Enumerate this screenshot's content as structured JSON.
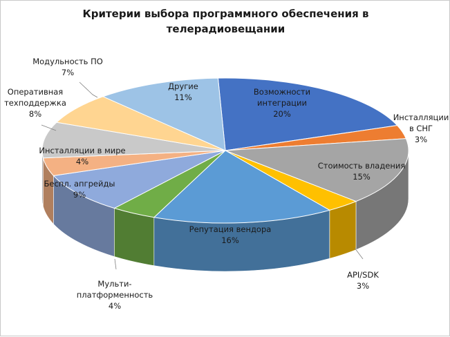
{
  "chart_data": {
    "type": "pie",
    "variant": "3d",
    "title_lines": [
      "Критерии выбора программного обеспечения в",
      "телерадиовещании"
    ],
    "slices": [
      {
        "label": [
          "Возможности",
          "интеграции"
        ],
        "value": 20,
        "value_label": "20%",
        "color": "#4472c4"
      },
      {
        "label": [
          "Инсталляции",
          "в СНГ"
        ],
        "value": 3,
        "value_label": "3%",
        "color": "#ed7d31"
      },
      {
        "label": [
          "Стоимость владения"
        ],
        "value": 15,
        "value_label": "15%",
        "color": "#a5a5a5"
      },
      {
        "label": [
          "API/SDK"
        ],
        "value": 3,
        "value_label": "3%",
        "color": "#ffc000"
      },
      {
        "label": [
          "Репутация вендора"
        ],
        "value": 16,
        "value_label": "16%",
        "color": "#5b9bd5"
      },
      {
        "label": [
          "Мульти-",
          "платформенность"
        ],
        "value": 4,
        "value_label": "4%",
        "color": "#70ad47"
      },
      {
        "label": [
          "Беспл. апгрейды"
        ],
        "value": 9,
        "value_label": "9%",
        "color": "#8faadc"
      },
      {
        "label": [
          "Инсталляции в мире"
        ],
        "value": 4,
        "value_label": "4%",
        "color": "#f4b183"
      },
      {
        "label": [
          "Оперативная",
          "техподдержка"
        ],
        "value": 8,
        "value_label": "8%",
        "color": "#c9c9c9"
      },
      {
        "label": [
          "Модульность ПО"
        ],
        "value": 7,
        "value_label": "7%",
        "color": "#ffd591"
      },
      {
        "label": [
          "Другие"
        ],
        "value": 11,
        "value_label": "11%",
        "color": "#9dc3e6"
      }
    ]
  }
}
